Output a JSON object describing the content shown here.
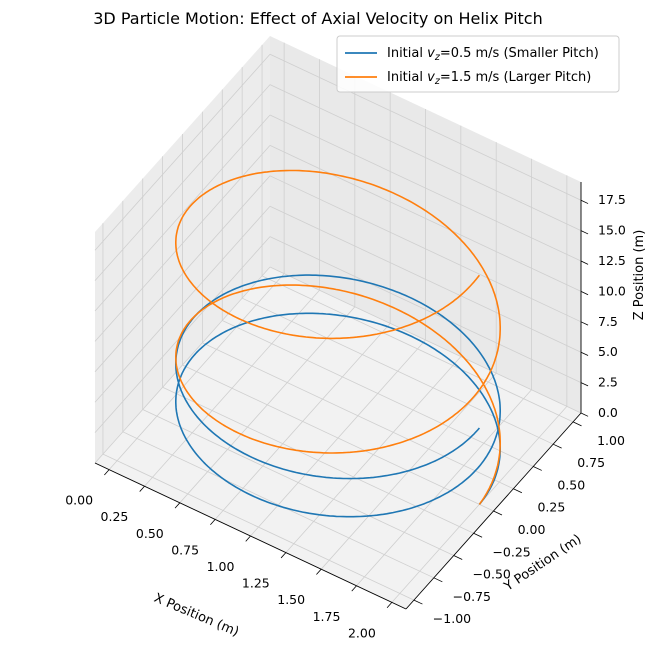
{
  "chart_data": {
    "type": "line",
    "title": "3D Particle Motion: Effect of Axial Velocity on Helix Pitch",
    "xlabel": "X Position (m)",
    "ylabel": "Y Position (m)",
    "zlabel": "Z Position (m)",
    "xlim": [
      -0.1,
      2.1
    ],
    "ylim": [
      -1.1,
      1.1
    ],
    "zlim": [
      0,
      19
    ],
    "x_ticks": [
      "0.00",
      "0.25",
      "0.50",
      "0.75",
      "1.00",
      "1.25",
      "1.50",
      "1.75",
      "2.00"
    ],
    "y_ticks": [
      "−1.00",
      "−0.75",
      "−0.50",
      "−0.25",
      "0.00",
      "0.25",
      "0.50",
      "0.75",
      "1.00"
    ],
    "z_ticks": [
      "0.0",
      "2.5",
      "5.0",
      "7.5",
      "10.0",
      "12.5",
      "15.0",
      "17.5"
    ],
    "grid": true,
    "legend_position": "top-right",
    "helix": {
      "center_x": 1.0,
      "center_y": 0.0,
      "radius": 1.0,
      "turns": 2
    },
    "series": [
      {
        "name_prefix": "Initial ",
        "name_var": "v",
        "name_sub": "z",
        "name_rest": "=0.5 m/s (Smaller Pitch)",
        "vz": 0.5,
        "z_end": 6.28,
        "color": "#1f77b4"
      },
      {
        "name_prefix": "Initial ",
        "name_var": "v",
        "name_sub": "z",
        "name_rest": "=1.5 m/s (Larger Pitch)",
        "vz": 1.5,
        "z_end": 18.85,
        "color": "#ff7f0e"
      }
    ]
  }
}
